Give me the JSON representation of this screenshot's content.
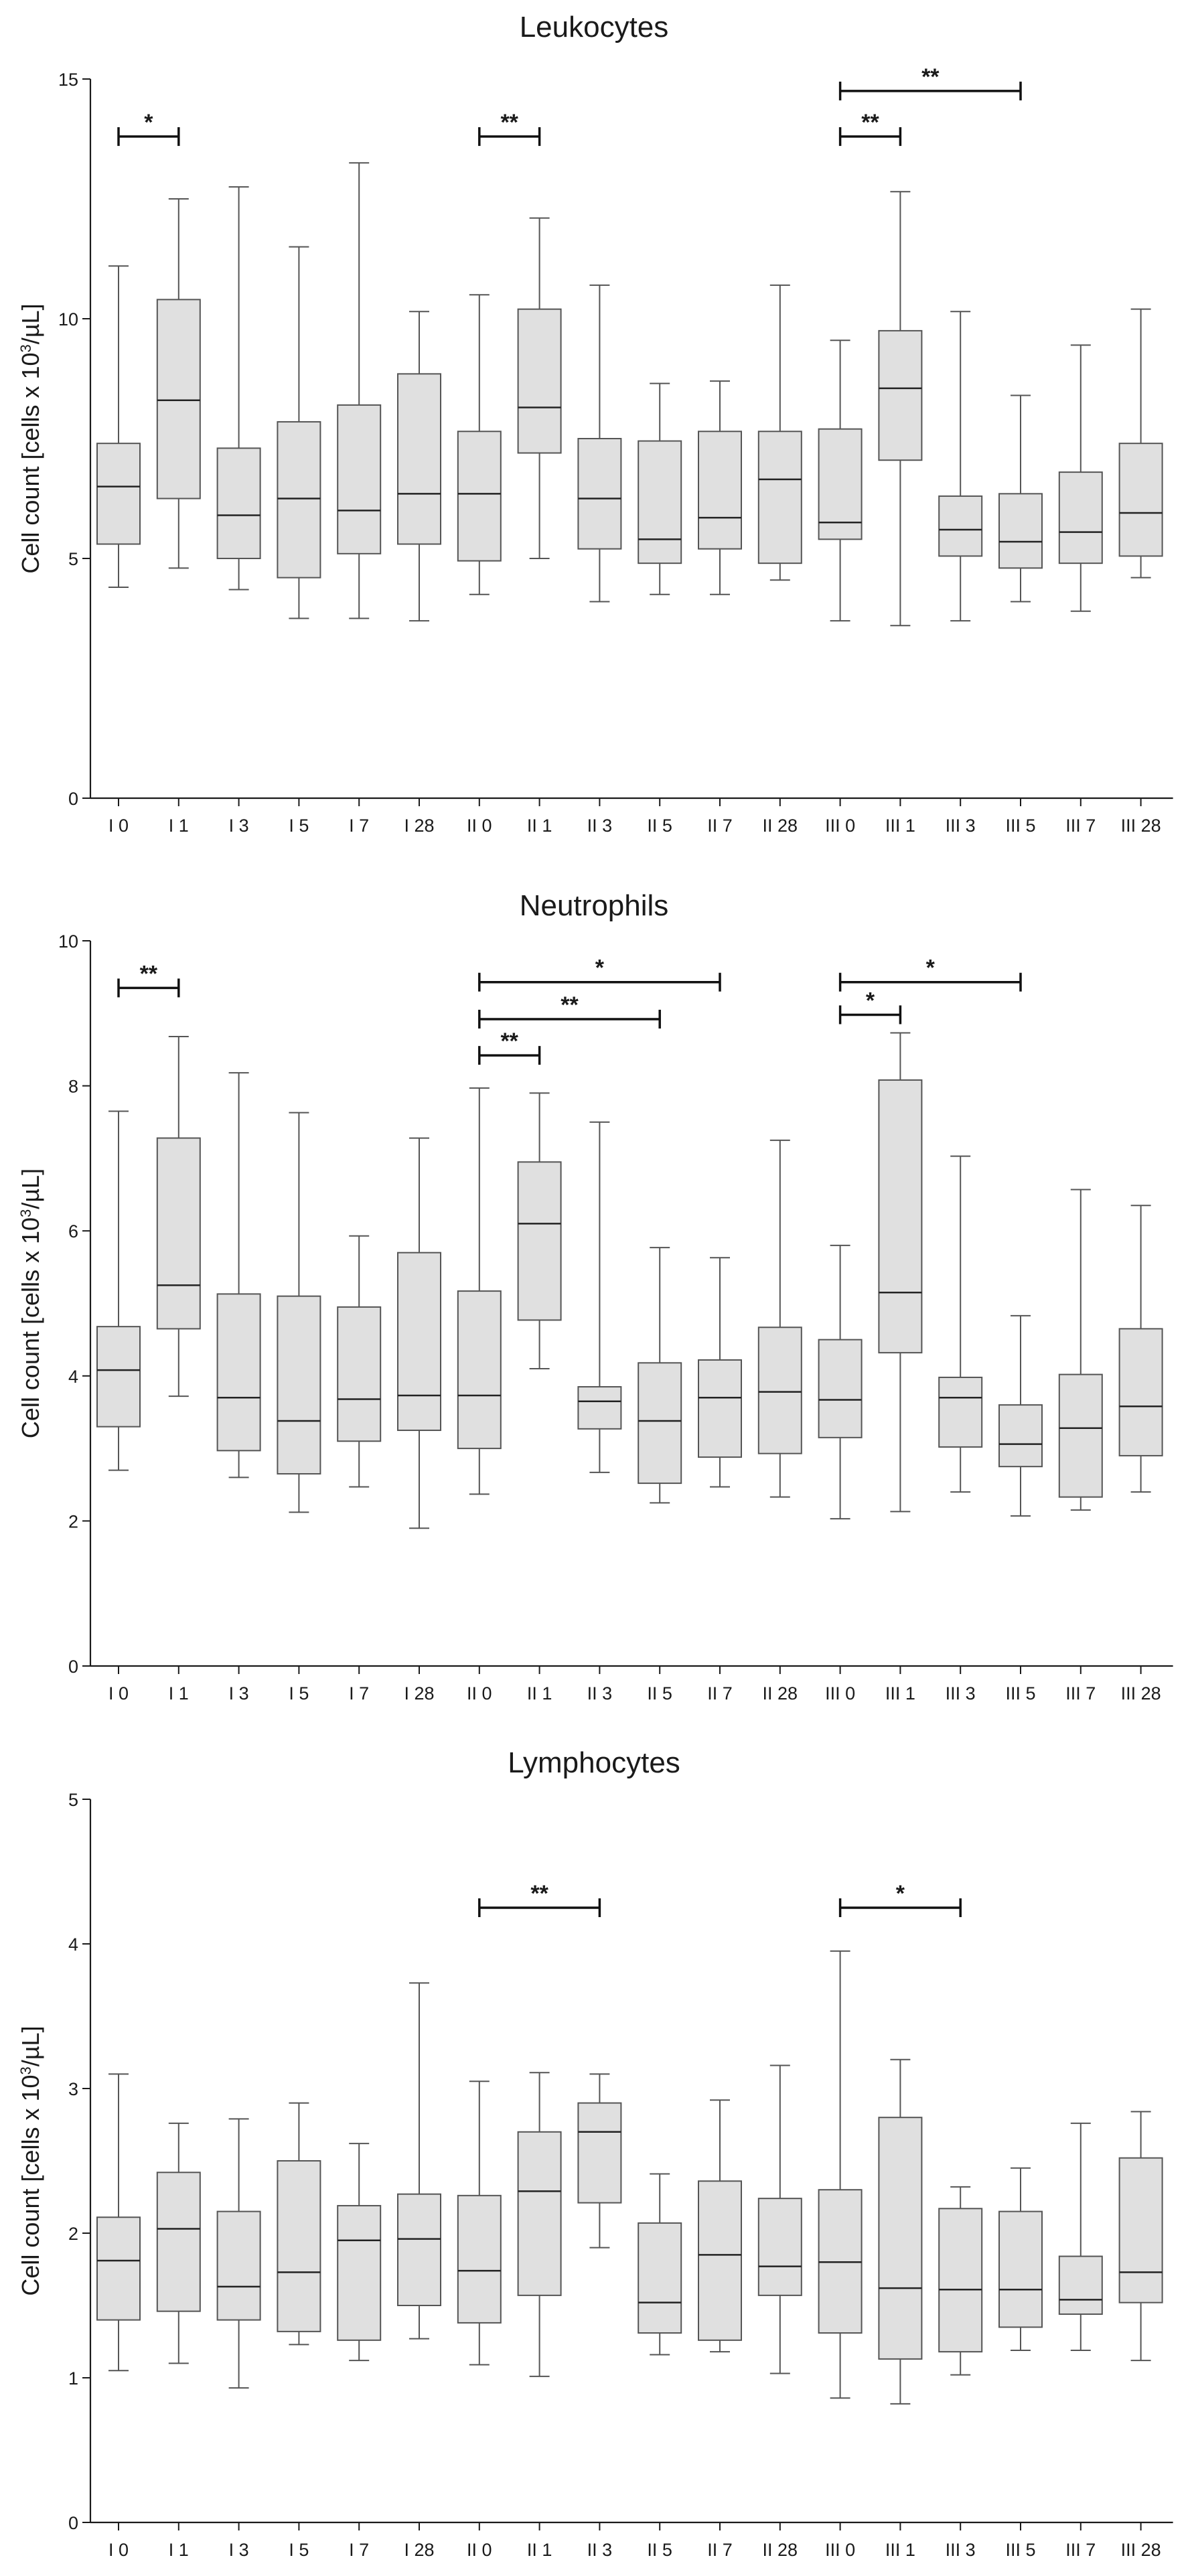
{
  "chart_data": [
    {
      "type": "box",
      "title": "Leukocytes",
      "ylabel": "Cell count [cells x 10",
      "ylabel_sup": "3",
      "ylabel_tail": "/µL]",
      "ylim": [
        0,
        15
      ],
      "yticks": [
        0,
        5,
        10,
        15
      ],
      "categories": [
        "I 0",
        "I 1",
        "I 3",
        "I 5",
        "I 7",
        "I 28",
        "II 0",
        "II 1",
        "II 3",
        "II 5",
        "II 7",
        "II 28",
        "III 0",
        "III 1",
        "III 3",
        "III 5",
        "III 7",
        "III 28"
      ],
      "boxes": [
        {
          "min": 4.4,
          "q1": 5.3,
          "median": 6.5,
          "q3": 7.4,
          "max": 11.1
        },
        {
          "min": 4.8,
          "q1": 6.25,
          "median": 8.3,
          "q3": 10.4,
          "max": 12.5
        },
        {
          "min": 4.35,
          "q1": 5.0,
          "median": 5.9,
          "q3": 7.3,
          "max": 12.75
        },
        {
          "min": 3.75,
          "q1": 4.6,
          "median": 6.25,
          "q3": 7.85,
          "max": 11.5
        },
        {
          "min": 3.75,
          "q1": 5.1,
          "median": 6.0,
          "q3": 8.2,
          "max": 13.25
        },
        {
          "min": 3.7,
          "q1": 5.3,
          "median": 6.35,
          "q3": 8.85,
          "max": 10.15
        },
        {
          "min": 4.25,
          "q1": 4.95,
          "median": 6.35,
          "q3": 7.65,
          "max": 10.5
        },
        {
          "min": 5.0,
          "q1": 7.2,
          "median": 8.15,
          "q3": 10.2,
          "max": 12.1
        },
        {
          "min": 4.1,
          "q1": 5.2,
          "median": 6.25,
          "q3": 7.5,
          "max": 10.7
        },
        {
          "min": 4.25,
          "q1": 4.9,
          "median": 5.4,
          "q3": 7.45,
          "max": 8.65
        },
        {
          "min": 4.25,
          "q1": 5.2,
          "median": 5.85,
          "q3": 7.65,
          "max": 8.7
        },
        {
          "min": 4.55,
          "q1": 4.9,
          "median": 6.65,
          "q3": 7.65,
          "max": 10.7
        },
        {
          "min": 3.7,
          "q1": 5.4,
          "median": 5.75,
          "q3": 7.7,
          "max": 9.55
        },
        {
          "min": 3.6,
          "q1": 7.05,
          "median": 8.55,
          "q3": 9.75,
          "max": 12.65
        },
        {
          "min": 3.7,
          "q1": 5.05,
          "median": 5.6,
          "q3": 6.3,
          "max": 10.15
        },
        {
          "min": 4.1,
          "q1": 4.8,
          "median": 5.35,
          "q3": 6.35,
          "max": 8.4
        },
        {
          "min": 3.9,
          "q1": 4.9,
          "median": 5.55,
          "q3": 6.8,
          "max": 9.45
        },
        {
          "min": 4.6,
          "q1": 5.05,
          "median": 5.95,
          "q3": 7.4,
          "max": 10.2
        }
      ],
      "annotations": [
        {
          "from": "I 0",
          "to": "I 1",
          "label": "*",
          "y": 13.8
        },
        {
          "from": "II 0",
          "to": "II 1",
          "label": "**",
          "y": 13.8
        },
        {
          "from": "III 0",
          "to": "III 1",
          "label": "**",
          "y": 13.8
        },
        {
          "from": "III 0",
          "to": "III 5",
          "label": "**",
          "y": 14.75
        }
      ]
    },
    {
      "type": "box",
      "title": "Neutrophils",
      "ylabel": "Cell count [cells x 10",
      "ylabel_sup": "3",
      "ylabel_tail": "/µL]",
      "ylim": [
        0,
        10
      ],
      "yticks": [
        0,
        2,
        4,
        6,
        8,
        10
      ],
      "categories": [
        "I 0",
        "I 1",
        "I 3",
        "I 5",
        "I 7",
        "I 28",
        "II 0",
        "II 1",
        "II 3",
        "II 5",
        "II 7",
        "II 28",
        "III 0",
        "III 1",
        "III 3",
        "III 5",
        "III 7",
        "III 28"
      ],
      "boxes": [
        {
          "min": 2.7,
          "q1": 3.3,
          "median": 4.08,
          "q3": 4.68,
          "max": 7.65
        },
        {
          "min": 3.72,
          "q1": 4.65,
          "median": 5.25,
          "q3": 7.28,
          "max": 8.68
        },
        {
          "min": 2.6,
          "q1": 2.97,
          "median": 3.7,
          "q3": 5.13,
          "max": 8.18
        },
        {
          "min": 2.12,
          "q1": 2.65,
          "median": 3.38,
          "q3": 5.1,
          "max": 7.63
        },
        {
          "min": 2.47,
          "q1": 3.1,
          "median": 3.68,
          "q3": 4.95,
          "max": 5.93
        },
        {
          "min": 1.9,
          "q1": 3.25,
          "median": 3.73,
          "q3": 5.7,
          "max": 7.28
        },
        {
          "min": 2.37,
          "q1": 3.0,
          "median": 3.73,
          "q3": 5.17,
          "max": 7.97
        },
        {
          "min": 4.1,
          "q1": 4.77,
          "median": 6.1,
          "q3": 6.95,
          "max": 7.9
        },
        {
          "min": 2.67,
          "q1": 3.27,
          "median": 3.65,
          "q3": 3.85,
          "max": 7.5
        },
        {
          "min": 2.25,
          "q1": 2.52,
          "median": 3.38,
          "q3": 4.18,
          "max": 5.77
        },
        {
          "min": 2.47,
          "q1": 2.88,
          "median": 3.7,
          "q3": 4.22,
          "max": 5.63
        },
        {
          "min": 2.33,
          "q1": 2.93,
          "median": 3.78,
          "q3": 4.67,
          "max": 7.25
        },
        {
          "min": 2.03,
          "q1": 3.15,
          "median": 3.67,
          "q3": 4.5,
          "max": 5.8
        },
        {
          "min": 2.13,
          "q1": 4.32,
          "median": 5.15,
          "q3": 8.08,
          "max": 8.73
        },
        {
          "min": 2.4,
          "q1": 3.02,
          "median": 3.7,
          "q3": 3.98,
          "max": 7.03
        },
        {
          "min": 2.07,
          "q1": 2.75,
          "median": 3.06,
          "q3": 3.6,
          "max": 4.83
        },
        {
          "min": 2.15,
          "q1": 2.33,
          "median": 3.28,
          "q3": 4.02,
          "max": 6.57
        },
        {
          "min": 2.4,
          "q1": 2.9,
          "median": 3.58,
          "q3": 4.65,
          "max": 6.35
        }
      ],
      "annotations": [
        {
          "from": "I 0",
          "to": "I 1",
          "label": "**",
          "y": 9.35
        },
        {
          "from": "II 0",
          "to": "II 1",
          "label": "**",
          "y": 8.42
        },
        {
          "from": "II 0",
          "to": "II 5",
          "label": "**",
          "y": 8.92
        },
        {
          "from": "II 0",
          "to": "II 7",
          "label": "*",
          "y": 9.43
        },
        {
          "from": "III 0",
          "to": "III 1",
          "label": "*",
          "y": 8.98
        },
        {
          "from": "III 0",
          "to": "III 5",
          "label": "*",
          "y": 9.43
        }
      ]
    },
    {
      "type": "box",
      "title": "Lymphocytes",
      "ylabel": "Cell count [cells x 10",
      "ylabel_sup": "3",
      "ylabel_tail": "/µL]",
      "ylim": [
        0,
        5
      ],
      "yticks": [
        0,
        1,
        2,
        3,
        4,
        5
      ],
      "categories": [
        "I 0",
        "I 1",
        "I 3",
        "I 5",
        "I 7",
        "I 28",
        "II 0",
        "II 1",
        "II 3",
        "II 5",
        "II 7",
        "II 28",
        "III 0",
        "III 1",
        "III 3",
        "III 5",
        "III 7",
        "III 28"
      ],
      "boxes": [
        {
          "min": 1.05,
          "q1": 1.4,
          "median": 1.81,
          "q3": 2.11,
          "max": 3.1
        },
        {
          "min": 1.1,
          "q1": 1.46,
          "median": 2.03,
          "q3": 2.42,
          "max": 2.76
        },
        {
          "min": 0.93,
          "q1": 1.4,
          "median": 1.63,
          "q3": 2.15,
          "max": 2.79
        },
        {
          "min": 1.23,
          "q1": 1.32,
          "median": 1.73,
          "q3": 2.5,
          "max": 2.9
        },
        {
          "min": 1.12,
          "q1": 1.26,
          "median": 1.95,
          "q3": 2.19,
          "max": 2.62
        },
        {
          "min": 1.27,
          "q1": 1.5,
          "median": 1.96,
          "q3": 2.27,
          "max": 3.73
        },
        {
          "min": 1.09,
          "q1": 1.38,
          "median": 1.74,
          "q3": 2.26,
          "max": 3.05
        },
        {
          "min": 1.01,
          "q1": 1.57,
          "median": 2.29,
          "q3": 2.7,
          "max": 3.11
        },
        {
          "min": 1.9,
          "q1": 2.21,
          "median": 2.7,
          "q3": 2.9,
          "max": 3.1
        },
        {
          "min": 1.16,
          "q1": 1.31,
          "median": 1.52,
          "q3": 2.07,
          "max": 2.41
        },
        {
          "min": 1.18,
          "q1": 1.26,
          "median": 1.85,
          "q3": 2.36,
          "max": 2.92
        },
        {
          "min": 1.03,
          "q1": 1.57,
          "median": 1.77,
          "q3": 2.24,
          "max": 3.16
        },
        {
          "min": 0.86,
          "q1": 1.31,
          "median": 1.8,
          "q3": 2.3,
          "max": 3.95
        },
        {
          "min": 0.82,
          "q1": 1.13,
          "median": 1.62,
          "q3": 2.8,
          "max": 3.2
        },
        {
          "min": 1.02,
          "q1": 1.18,
          "median": 1.61,
          "q3": 2.17,
          "max": 2.32
        },
        {
          "min": 1.19,
          "q1": 1.35,
          "median": 1.61,
          "q3": 2.15,
          "max": 2.45
        },
        {
          "min": 1.19,
          "q1": 1.44,
          "median": 1.54,
          "q3": 1.84,
          "max": 2.76
        },
        {
          "min": 1.12,
          "q1": 1.52,
          "median": 1.73,
          "q3": 2.52,
          "max": 2.84
        }
      ],
      "annotations": [
        {
          "from": "II 0",
          "to": "II 3",
          "label": "**",
          "y": 4.25
        },
        {
          "from": "III 0",
          "to": "III 3",
          "label": "*",
          "y": 4.25
        }
      ]
    }
  ],
  "colors": {
    "box_fill": "#e0e0e0",
    "box_stroke": "#555555",
    "median": "#222222",
    "whisker": "#555555",
    "axis": "#1a1a1a",
    "bracket": "#111111",
    "background": "#ffffff"
  }
}
